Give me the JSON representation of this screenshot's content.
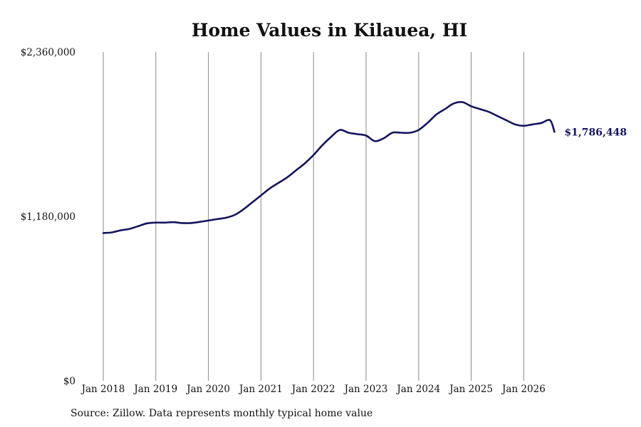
{
  "chart_data": {
    "type": "line",
    "title": "Home Values in Kilauea, HI",
    "source": "Source: Zillow. Data represents monthly typical home value",
    "ylim": [
      0,
      2360000
    ],
    "y_ticks": [
      {
        "value": 0,
        "label": "$0"
      },
      {
        "value": 1180000,
        "label": "$1,180,000"
      },
      {
        "value": 2360000,
        "label": "$2,360,000"
      }
    ],
    "x_ticks": [
      "Jan 2018",
      "Jan 2019",
      "Jan 2020",
      "Jan 2021",
      "Jan 2022",
      "Jan 2023",
      "Jan 2024",
      "Jan 2025",
      "Jan 2026"
    ],
    "x_range": [
      "2018-01",
      "2026-08"
    ],
    "grid": "vertical",
    "line_color": "#14145e",
    "end_label": "$1,786,448",
    "series": [
      {
        "x": [
          "2018-01",
          "2018-03",
          "2018-05",
          "2018-07",
          "2018-09",
          "2018-11",
          "2019-01",
          "2019-03",
          "2019-05",
          "2019-07",
          "2019-09",
          "2019-11",
          "2020-01",
          "2020-03",
          "2020-05",
          "2020-07",
          "2020-09",
          "2020-11",
          "2021-01",
          "2021-03",
          "2021-05",
          "2021-07",
          "2021-09",
          "2021-11",
          "2022-01",
          "2022-03",
          "2022-05",
          "2022-07",
          "2022-09",
          "2022-11",
          "2023-01",
          "2023-03",
          "2023-05",
          "2023-07",
          "2023-09",
          "2023-11",
          "2024-01",
          "2024-03",
          "2024-05",
          "2024-07",
          "2024-09",
          "2024-11",
          "2025-01",
          "2025-03",
          "2025-05",
          "2025-07",
          "2025-09",
          "2025-11",
          "2026-01",
          "2026-03",
          "2026-05",
          "2026-07",
          "2026-08"
        ],
        "values": [
          1060000,
          1065000,
          1080000,
          1090000,
          1110000,
          1130000,
          1135000,
          1135000,
          1138000,
          1132000,
          1132000,
          1140000,
          1150000,
          1160000,
          1170000,
          1190000,
          1230000,
          1280000,
          1330000,
          1380000,
          1420000,
          1460000,
          1510000,
          1560000,
          1620000,
          1690000,
          1750000,
          1800000,
          1780000,
          1770000,
          1760000,
          1720000,
          1740000,
          1780000,
          1780000,
          1780000,
          1800000,
          1850000,
          1910000,
          1950000,
          1990000,
          2000000,
          1970000,
          1950000,
          1930000,
          1900000,
          1870000,
          1840000,
          1830000,
          1840000,
          1850000,
          1870000,
          1786448
        ]
      }
    ]
  }
}
